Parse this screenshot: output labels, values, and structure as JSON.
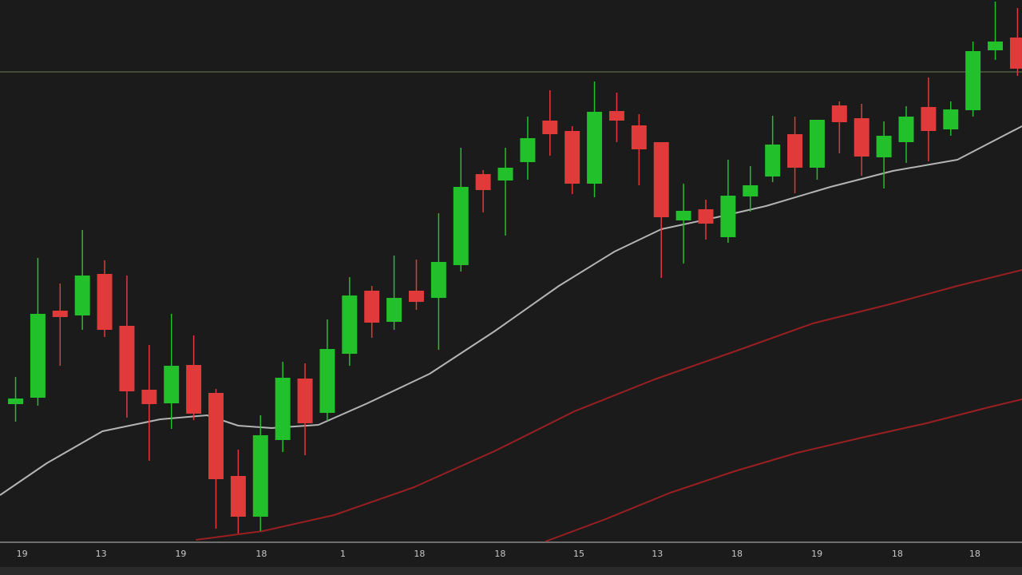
{
  "chart_data": {
    "type": "candlestick",
    "x": [
      0,
      1,
      2,
      3,
      4,
      5,
      6,
      7,
      8,
      9,
      10,
      11,
      12,
      13,
      14,
      15,
      16,
      17,
      18,
      19,
      20,
      21,
      22,
      23,
      24,
      25,
      26,
      27,
      28,
      29,
      30,
      31,
      32,
      33,
      34,
      35,
      36,
      37,
      38,
      39,
      40,
      41,
      42,
      43,
      44,
      45
    ],
    "open": [
      174,
      182,
      291,
      285,
      337,
      272,
      192,
      175,
      223,
      188,
      84,
      33,
      129,
      206,
      163,
      237,
      316,
      277,
      316,
      307,
      348,
      462,
      454,
      477,
      529,
      516,
      450,
      541,
      523,
      502,
      404,
      418,
      383,
      434,
      459,
      512,
      470,
      548,
      532,
      483,
      502,
      546,
      518,
      542,
      617,
      633
    ],
    "high": [
      208,
      357,
      325,
      392,
      354,
      335,
      248,
      287,
      260,
      193,
      117,
      160,
      227,
      225,
      280,
      333,
      322,
      360,
      355,
      413,
      495,
      467,
      495,
      534,
      567,
      522,
      578,
      564,
      537,
      502,
      450,
      430,
      480,
      472,
      535,
      534,
      530,
      553,
      550,
      528,
      547,
      583,
      553,
      628,
      678,
      670
    ],
    "low": [
      152,
      172,
      222,
      267,
      258,
      157,
      103,
      143,
      154,
      18,
      12,
      15,
      114,
      110,
      153,
      222,
      257,
      267,
      292,
      242,
      340,
      414,
      385,
      455,
      485,
      437,
      433,
      502,
      448,
      332,
      350,
      380,
      376,
      415,
      452,
      438,
      455,
      488,
      460,
      444,
      476,
      478,
      510,
      534,
      605,
      585
    ],
    "close": [
      181,
      287,
      283,
      335,
      267,
      190,
      174,
      222,
      162,
      80,
      33,
      135,
      207,
      150,
      243,
      310,
      276,
      307,
      302,
      352,
      446,
      442,
      470,
      507,
      512,
      450,
      540,
      529,
      493,
      408,
      416,
      400,
      435,
      448,
      499,
      470,
      530,
      527,
      484,
      510,
      534,
      516,
      543,
      616,
      628,
      594
    ],
    "up_color": "#22c02a",
    "down_color": "#e03a3a",
    "lines": [
      {
        "color": "#b4b4b4",
        "x": [
          -0.7,
          1.4,
          3.9,
          6.5,
          8.6,
          10,
          11.5,
          13.6,
          15.8,
          18.6,
          21.5,
          24.4,
          26.9,
          29,
          31.5,
          33.7,
          36.6,
          39.4,
          42.3,
          45.2
        ],
        "values": [
          60,
          100,
          140,
          155,
          160,
          147,
          144,
          148,
          175,
          212,
          265,
          322,
          365,
          393,
          408,
          422,
          446,
          466,
          480,
          522
        ]
      },
      {
        "color": "#9a1f22",
        "x": [
          8.1,
          11.1,
          14.3,
          17.9,
          21.5,
          25.1,
          28.7,
          32.3,
          35.8,
          39.4,
          42.3,
          45.2
        ],
        "values": [
          4,
          15,
          35,
          70,
          115,
          165,
          205,
          240,
          275,
          300,
          322,
          342
        ]
      },
      {
        "color": "#9a1f22",
        "x": [
          23.8,
          26.5,
          29.4,
          32.3,
          35.1,
          38.0,
          40.9,
          43.7,
          45.2
        ],
        "values": [
          2,
          30,
          63,
          90,
          113,
          132,
          150,
          170,
          180
        ]
      }
    ],
    "hline": {
      "value": 590,
      "color": "#4d5e3e"
    },
    "xlim": [
      -0.7,
      45.2
    ],
    "ylim": [
      0,
      680
    ],
    "xticks": [
      {
        "value": 0.29,
        "label": "19"
      },
      {
        "value": 3.84,
        "label": "13"
      },
      {
        "value": 7.42,
        "label": "19"
      },
      {
        "value": 11.04,
        "label": "18"
      },
      {
        "value": 14.7,
        "label": "1"
      },
      {
        "value": 18.14,
        "label": "18"
      },
      {
        "value": 21.76,
        "label": "18"
      },
      {
        "value": 25.3,
        "label": "15"
      },
      {
        "value": 28.82,
        "label": "13"
      },
      {
        "value": 32.4,
        "label": "18"
      },
      {
        "value": 35.99,
        "label": "19"
      },
      {
        "value": 39.6,
        "label": "18"
      },
      {
        "value": 43.08,
        "label": "18"
      }
    ]
  }
}
